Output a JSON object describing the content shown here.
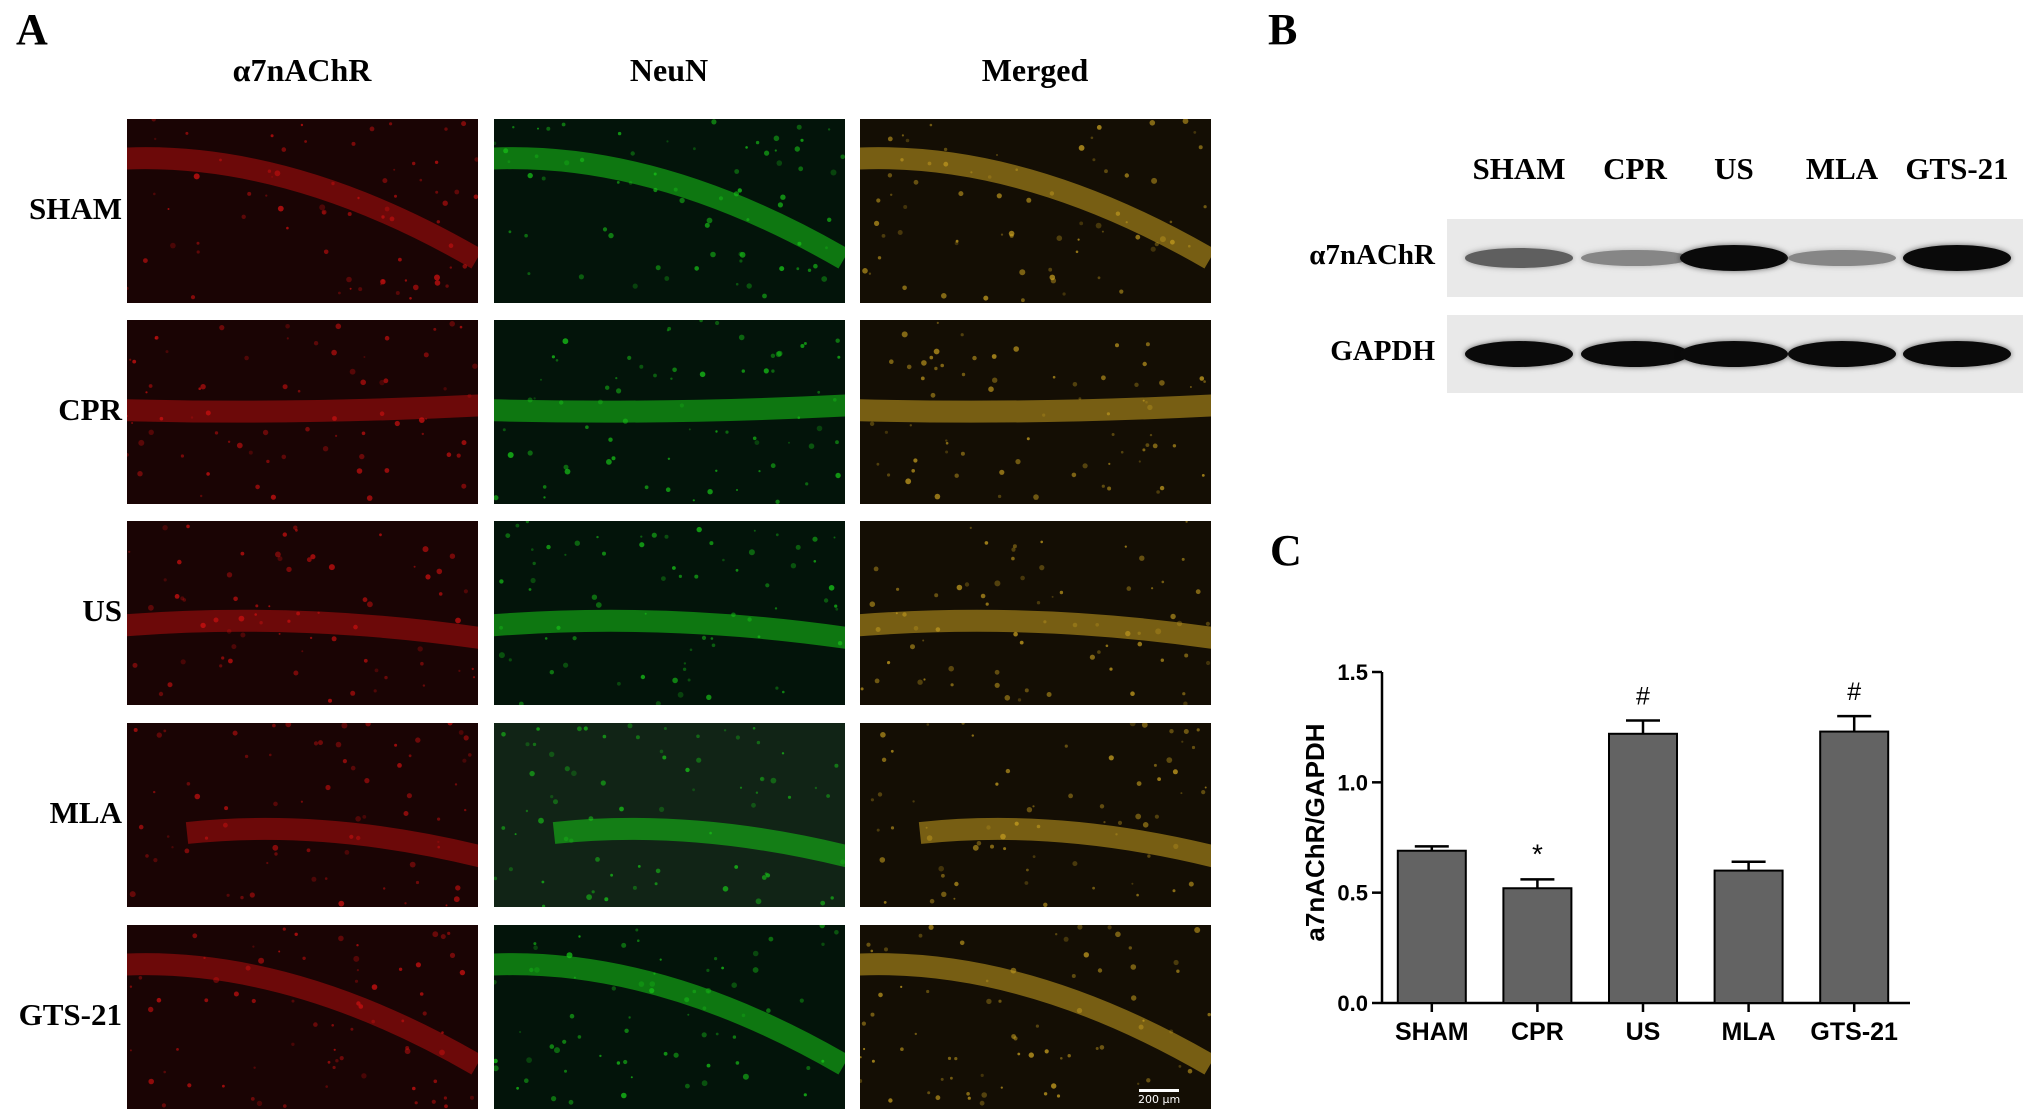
{
  "panel_a": {
    "letter": "A",
    "columns": [
      "α7nAChR",
      "NeuN",
      "Merged"
    ],
    "rows": [
      "SHAM",
      "CPR",
      "US",
      "MLA",
      "GTS-21"
    ],
    "scale_bar": "200 μm",
    "colors": {
      "alpha7": "#d01010",
      "neun": "#18c818",
      "merged": "#c8a020"
    }
  },
  "panel_b": {
    "letter": "B",
    "lanes": [
      "SHAM",
      "CPR",
      "US",
      "MLA",
      "GTS-21"
    ],
    "blots": [
      {
        "label": "α7nAChR",
        "intensity": [
          0.55,
          0.35,
          1.0,
          0.35,
          1.0
        ]
      },
      {
        "label": "GAPDH",
        "intensity": [
          1.0,
          1.0,
          1.0,
          1.0,
          1.0
        ]
      }
    ]
  },
  "panel_c": {
    "letter": "C"
  },
  "chart_data": {
    "type": "bar",
    "categories": [
      "SHAM",
      "CPR",
      "US",
      "MLA",
      "GTS-21"
    ],
    "values": [
      0.69,
      0.52,
      1.22,
      0.6,
      1.23
    ],
    "errors": [
      0.02,
      0.04,
      0.06,
      0.04,
      0.07
    ],
    "annotations": [
      "",
      "*",
      "#",
      "",
      "#"
    ],
    "ylabel": "a7nAChR/GAPDH",
    "xlabel": "",
    "ylim": [
      0,
      1.5
    ],
    "yticks": [
      "0.0",
      "0.5",
      "1.0",
      "1.5"
    ],
    "bar_color": "#636363",
    "grid": false
  }
}
